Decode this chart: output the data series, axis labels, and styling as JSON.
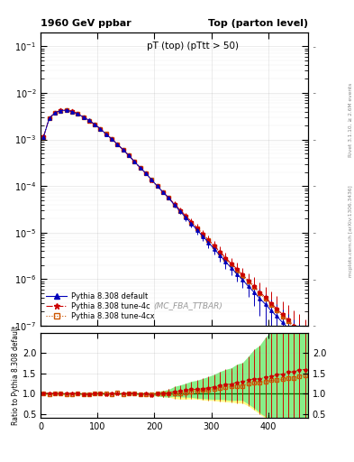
{
  "title_left": "1960 GeV ppbar",
  "title_right": "Top (parton level)",
  "main_title": "pT (top) (pTtt > 50)",
  "watermark": "(MC_FBA_TTBAR)",
  "right_label_top": "Rivet 3.1.10, ≥ 2.6M events",
  "right_label_bottom": "mcplots.cern.ch [arXiv:1306.3436]",
  "ylabel_ratio": "Ratio to Pythia 8.308 default",
  "ylim_main": [
    1e-07,
    0.2
  ],
  "ylim_ratio": [
    0.4,
    2.5
  ],
  "yticks_ratio": [
    0.5,
    1.0,
    1.5,
    2.0
  ],
  "xlim": [
    0,
    470
  ],
  "xticks": [
    0,
    100,
    200,
    300,
    400
  ],
  "legend": [
    {
      "label": "Pythia 8.308 default",
      "color": "#0000bb",
      "marker": "^",
      "linestyle": "-"
    },
    {
      "label": "Pythia 8.308 tune-4c",
      "color": "#cc0000",
      "marker": "*",
      "linestyle": "-."
    },
    {
      "label": "Pythia 8.308 tune-4cx",
      "color": "#cc5500",
      "marker": "s",
      "linestyle": ":"
    }
  ],
  "band_color_yellow": "#FFFF88",
  "band_color_green": "#88EE88",
  "ratio_line_color": "#006600",
  "grid_color": "#aaaaaa"
}
